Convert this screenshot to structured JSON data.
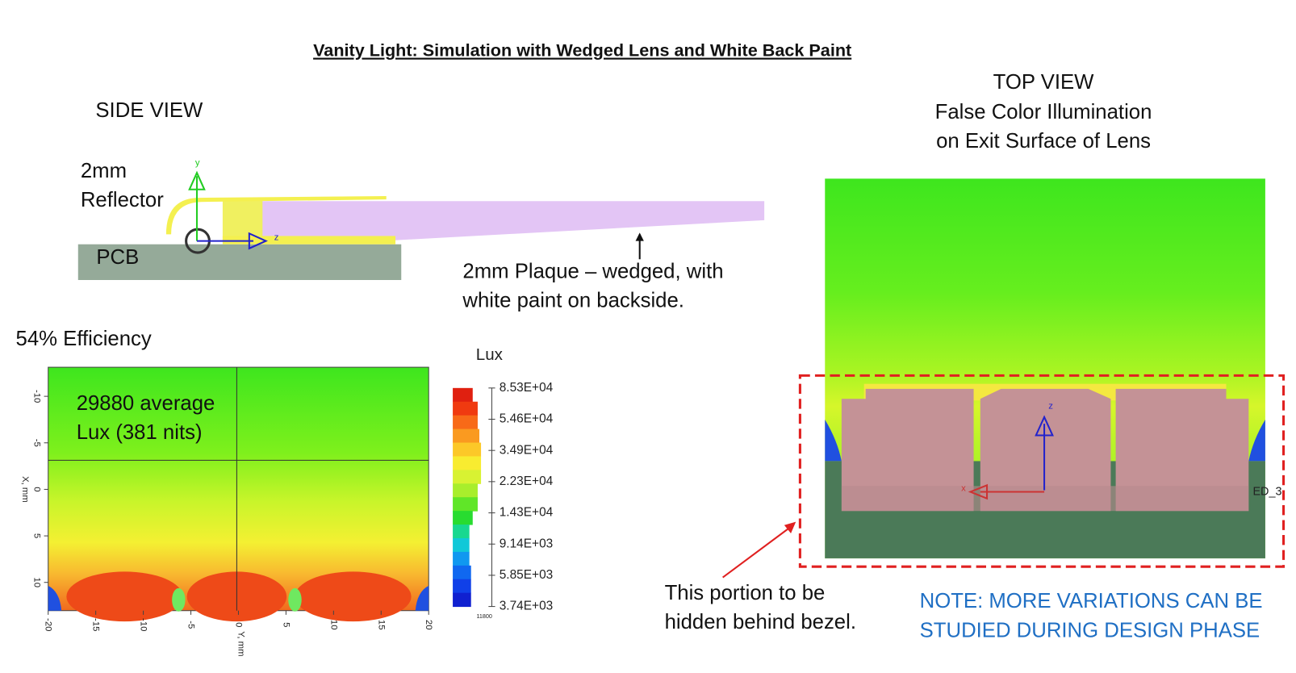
{
  "title": "Vanity Light: Simulation with Wedged Lens and White Back Paint",
  "side_view": {
    "heading": "SIDE VIEW",
    "reflector_label": [
      "2mm",
      "Reflector"
    ],
    "pcb_label": "PCB",
    "plaque_label": [
      "2mm Plaque – wedged, with",
      "white paint on backside."
    ],
    "axis_y": "y",
    "axis_z": "z"
  },
  "illuminance_map": {
    "efficiency": "54% Efficiency",
    "annotation": [
      "29880 average",
      "Lux (381 nits)"
    ],
    "x_axis_label": "Y, mm",
    "y_axis_label": "X, mm",
    "x_ticks": [
      -20,
      -15,
      -10,
      -5,
      0,
      5,
      10,
      15,
      20
    ],
    "y_ticks": [
      -10,
      -5,
      0,
      5,
      10
    ],
    "colorbar_title": "Lux",
    "colorbar_labels": [
      "8.53E+04",
      "5.46E+04",
      "3.49E+04",
      "2.23E+04",
      "1.43E+04",
      "9.14E+03",
      "5.85E+03",
      "3.74E+03"
    ],
    "colorbar_footer": "11800"
  },
  "top_view": {
    "heading": [
      "TOP VIEW",
      "False Color Illumination",
      "on Exit Surface of Lens"
    ],
    "axis_z": "z",
    "axis_x": "x",
    "led_label": "ED_3",
    "bezel_note": [
      "This portion to be",
      "hidden behind bezel."
    ],
    "design_note": [
      "NOTE: MORE VARIATIONS CAN BE",
      "STUDIED DURING DESIGN PHASE"
    ]
  }
}
